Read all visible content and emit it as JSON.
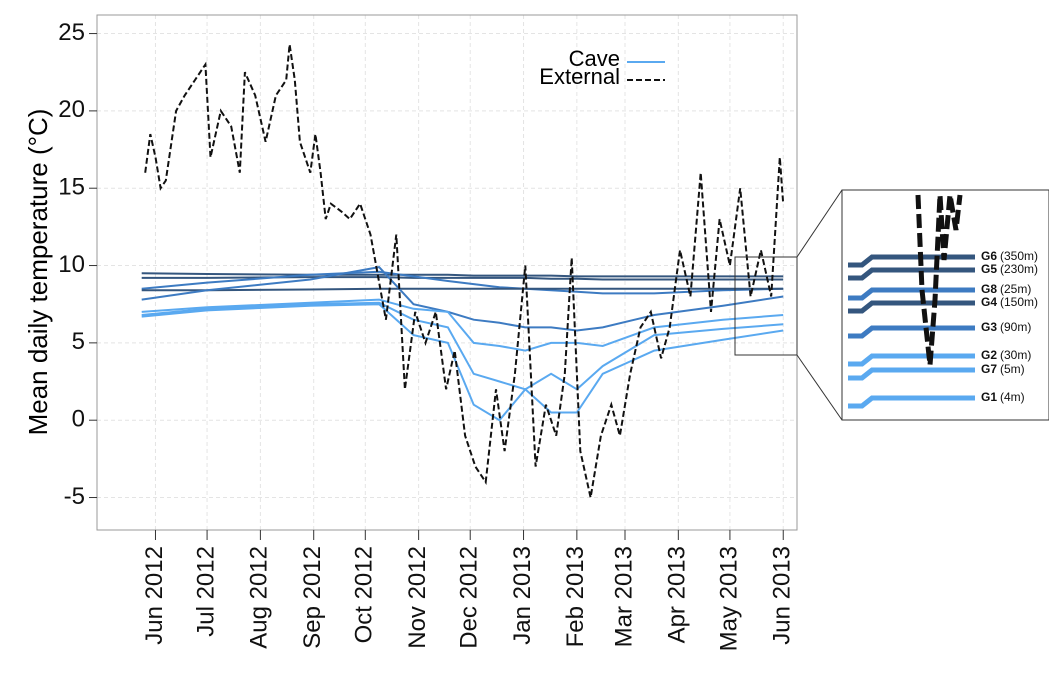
{
  "chart_data": {
    "type": "line",
    "y_label": "Mean daily temperature (°C)",
    "xlim": [
      -34,
      373
    ],
    "ylim": [
      -7.1,
      26.2
    ],
    "xticks": [
      {
        "value": 0,
        "label": "Jun 2012"
      },
      {
        "value": 30,
        "label": "Jul 2012"
      },
      {
        "value": 61,
        "label": "Aug 2012"
      },
      {
        "value": 92,
        "label": "Sep 2012"
      },
      {
        "value": 122,
        "label": "Oct 2012"
      },
      {
        "value": 153,
        "label": "Nov 2012"
      },
      {
        "value": 183,
        "label": "Dec 2012"
      },
      {
        "value": 214,
        "label": "Jan 2013"
      },
      {
        "value": 245,
        "label": "Feb 2013"
      },
      {
        "value": 273,
        "label": "Mar 2013"
      },
      {
        "value": 304,
        "label": "Apr 2013"
      },
      {
        "value": 334,
        "label": "May 2013"
      },
      {
        "value": 365,
        "label": "Jun 2013"
      }
    ],
    "yticks": [
      -5,
      0,
      5,
      10,
      15,
      20,
      25
    ],
    "grid": true,
    "legend": [
      {
        "label": "Cave",
        "color": "#5aa9f0",
        "dash": "solid"
      },
      {
        "label": "External",
        "color": "#111111",
        "dash": "dashed"
      }
    ],
    "series": [
      {
        "name": "External",
        "color": "#111111",
        "dash": "dashed",
        "x": [
          -6,
          -3,
          0,
          3,
          6,
          12,
          17,
          23,
          29,
          32,
          38,
          44,
          49,
          52,
          58,
          64,
          70,
          76,
          78,
          81,
          84,
          90,
          93,
          96,
          99,
          102,
          108,
          113,
          119,
          125,
          134,
          140,
          145,
          151,
          157,
          163,
          169,
          174,
          180,
          186,
          192,
          198,
          203,
          209,
          215,
          221,
          227,
          233,
          238,
          242,
          247,
          253,
          259,
          265,
          270,
          276,
          282,
          288,
          294,
          299,
          305,
          311,
          317,
          323,
          328,
          334,
          340,
          346,
          352,
          358,
          363,
          365
        ],
        "values": [
          16,
          18.5,
          17,
          15,
          15.5,
          20,
          21,
          22,
          23,
          17,
          20,
          19,
          16,
          22.5,
          21,
          18,
          21,
          22,
          24.3,
          22,
          18,
          16,
          18.5,
          16,
          13,
          14,
          13.5,
          13,
          14,
          12,
          6.5,
          12,
          2,
          7,
          5,
          7,
          2,
          4.5,
          -1,
          -3,
          -4,
          2,
          -2,
          3,
          10,
          -3,
          1,
          -1,
          3,
          10.5,
          -2,
          -5,
          -1,
          1,
          -1,
          3,
          6,
          7,
          4,
          6,
          11,
          8,
          16,
          7,
          13,
          10,
          15,
          8,
          11,
          8,
          17,
          14
        ]
      },
      {
        "name": "G6",
        "depth": "(350m)",
        "color": "#34567e",
        "dash": "solid",
        "x": [
          -8,
          30,
          90,
          130,
          150,
          170,
          185,
          200,
          215,
          230,
          245,
          260,
          290,
          330,
          365
        ],
        "values": [
          9.5,
          9.45,
          9.4,
          9.4,
          9.4,
          9.4,
          9.35,
          9.35,
          9.35,
          9.35,
          9.3,
          9.3,
          9.3,
          9.3,
          9.3
        ]
      },
      {
        "name": "G5",
        "depth": "(230m)",
        "color": "#34567e",
        "dash": "solid",
        "x": [
          -8,
          30,
          90,
          130,
          150,
          170,
          185,
          200,
          215,
          230,
          245,
          260,
          290,
          330,
          365
        ],
        "values": [
          9.2,
          9.2,
          9.25,
          9.25,
          9.2,
          9.2,
          9.2,
          9.2,
          9.2,
          9.15,
          9.15,
          9.1,
          9.1,
          9.1,
          9.1
        ]
      },
      {
        "name": "G8",
        "depth": "(25m)",
        "color": "#3d7bc2",
        "dash": "solid",
        "x": [
          -8,
          30,
          90,
          130,
          150,
          170,
          185,
          200,
          215,
          230,
          245,
          260,
          290,
          330,
          365
        ],
        "values": [
          8.5,
          8.9,
          9.4,
          9.6,
          9.3,
          9,
          8.8,
          8.6,
          8.5,
          8.4,
          8.3,
          8.2,
          8.2,
          8.4,
          8.5
        ]
      },
      {
        "name": "G4",
        "depth": "(150m)",
        "color": "#34567e",
        "dash": "solid",
        "x": [
          -8,
          30,
          90,
          130,
          150,
          170,
          185,
          200,
          215,
          230,
          245,
          260,
          290,
          330,
          365
        ],
        "values": [
          8.4,
          8.4,
          8.45,
          8.5,
          8.5,
          8.5,
          8.5,
          8.5,
          8.5,
          8.5,
          8.5,
          8.5,
          8.5,
          8.5,
          8.5
        ]
      },
      {
        "name": "G3",
        "depth": "(90m)",
        "color": "#3d7bc2",
        "dash": "solid",
        "x": [
          -8,
          30,
          90,
          130,
          150,
          170,
          185,
          200,
          215,
          230,
          245,
          260,
          290,
          330,
          365
        ],
        "values": [
          7.8,
          8.4,
          9.1,
          9.9,
          7.5,
          7,
          6.5,
          6.3,
          6,
          6,
          5.8,
          6,
          6.8,
          7.4,
          8
        ]
      },
      {
        "name": "G2",
        "depth": "(30m)",
        "color": "#5aa9f0",
        "dash": "solid",
        "x": [
          -8,
          30,
          90,
          130,
          150,
          170,
          185,
          200,
          215,
          230,
          245,
          260,
          290,
          330,
          365
        ],
        "values": [
          7,
          7.3,
          7.6,
          7.8,
          7.2,
          7,
          5,
          4.8,
          4.5,
          5,
          5,
          4.8,
          6,
          6.5,
          6.8
        ]
      },
      {
        "name": "G7",
        "depth": "(5m)",
        "color": "#5aa9f0",
        "dash": "solid",
        "x": [
          -8,
          30,
          90,
          130,
          150,
          170,
          185,
          200,
          215,
          230,
          245,
          260,
          290,
          330,
          365
        ],
        "values": [
          6.8,
          7.2,
          7.5,
          7.6,
          6.5,
          6,
          3,
          2.5,
          2,
          3,
          2,
          3.5,
          5.5,
          5.9,
          6.2
        ]
      },
      {
        "name": "G1",
        "depth": "(4m)",
        "color": "#5aa9f0",
        "dash": "solid",
        "x": [
          -8,
          30,
          90,
          130,
          150,
          170,
          185,
          200,
          215,
          230,
          245,
          260,
          290,
          330,
          365
        ],
        "values": [
          6.7,
          7.1,
          7.4,
          7.5,
          5.5,
          5,
          1,
          0,
          2,
          0.5,
          0.5,
          3,
          4.5,
          5.2,
          5.8
        ]
      }
    ]
  }
}
